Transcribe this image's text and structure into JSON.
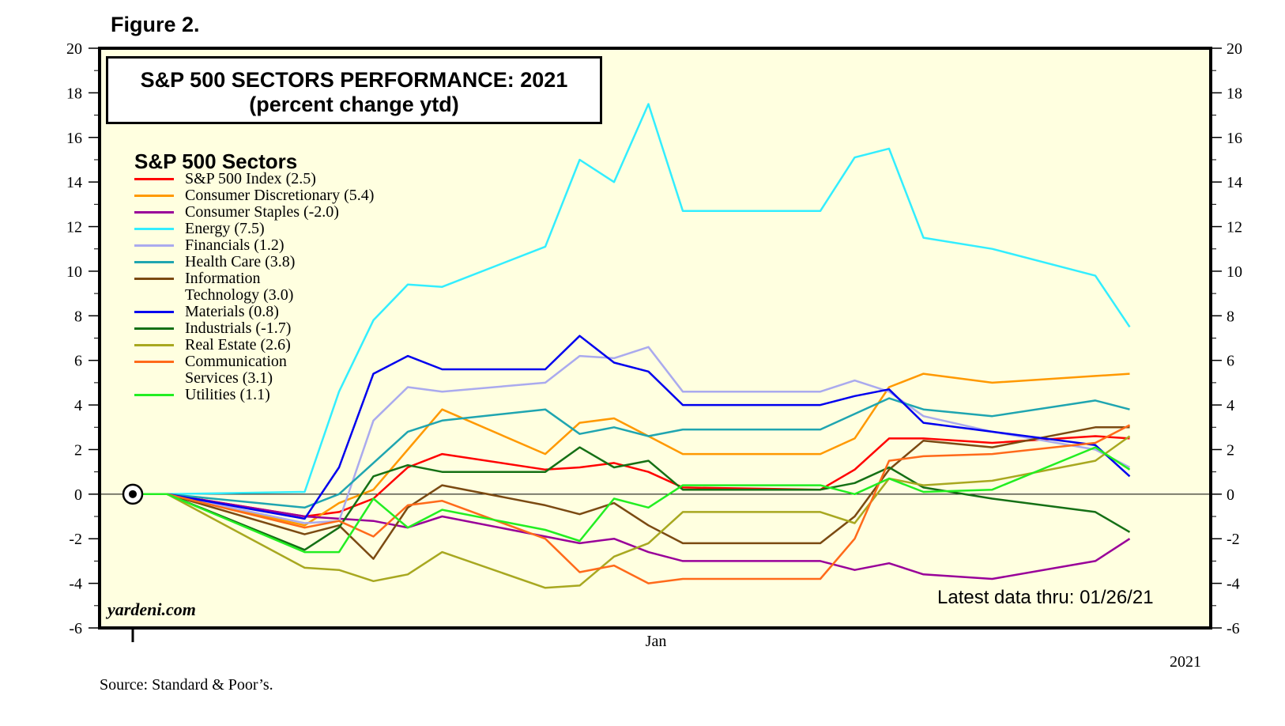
{
  "figure_label": "Figure 2.",
  "source": "Source: Standard & Poor’s.",
  "brand": "yardeni.com",
  "latest": "Latest data thru: 01/26/21",
  "title_box": {
    "line1": "S&P 500 SECTORS PERFORMANCE: 2021",
    "line2": "(percent change ytd)"
  },
  "legend": {
    "title": "S&P 500 Sectors"
  },
  "colors": {
    "plot_bg": "#ffffe0",
    "axis": "#000000"
  },
  "chart_data": {
    "type": "line",
    "title": "S&P 500 SECTORS PERFORMANCE: 2021",
    "subtitle": "(percent change ytd)",
    "xlabel": "",
    "ylabel": "",
    "ylim": [
      -6,
      20
    ],
    "yticks": [
      -6,
      -4,
      -2,
      0,
      2,
      4,
      6,
      8,
      10,
      12,
      14,
      16,
      18,
      20
    ],
    "ytick_labels": [
      "-6",
      "-4",
      "-2",
      "0",
      "2",
      "4",
      "6",
      "8",
      "10",
      "12",
      "14",
      "16",
      "18",
      "20"
    ],
    "x_label_jan": "Jan",
    "x_label_year": "2021",
    "start_marker": {
      "day": 0,
      "value": 0
    },
    "x_days": [
      0,
      1,
      5,
      6,
      7,
      8,
      9,
      12,
      13,
      14,
      15,
      16,
      20,
      21,
      22,
      23,
      25
    ],
    "series": [
      {
        "name": "S&P 500 Index (2.5)",
        "color": "#ff0000",
        "values": [
          0,
          0,
          -1.0,
          -0.8,
          -0.2,
          1.2,
          1.8,
          1.1,
          1.2,
          1.4,
          1.0,
          0.3,
          0.2,
          1.1,
          2.5,
          2.5,
          2.3
        ]
      },
      {
        "name": "Consumer Discretionary (5.4)",
        "color": "#ff9900",
        "values": [
          0,
          0,
          -1.4,
          -0.4,
          0.2,
          2.0,
          3.8,
          1.8,
          3.2,
          3.4,
          2.6,
          1.8,
          1.8,
          2.5,
          4.8,
          5.4,
          5.0
        ]
      },
      {
        "name": "Consumer Staples (-2.0)",
        "color": "#990099",
        "values": [
          0,
          0,
          -1.0,
          -1.1,
          -1.2,
          -1.5,
          -1.0,
          -1.9,
          -2.2,
          -2.0,
          -2.6,
          -3.0,
          -3.0,
          -3.4,
          -3.1,
          -3.6,
          -3.8
        ]
      },
      {
        "name": "Energy (7.5)",
        "color": "#33eeff",
        "values": [
          0,
          0,
          0.1,
          4.6,
          7.8,
          9.4,
          9.3,
          11.1,
          15.0,
          14.0,
          17.5,
          12.7,
          12.7,
          15.1,
          15.5,
          11.5,
          11.0
        ]
      },
      {
        "name": "Financials (1.2)",
        "color": "#aaaaee",
        "values": [
          0,
          0,
          -1.3,
          -1.2,
          3.3,
          4.8,
          4.6,
          5.0,
          6.2,
          6.1,
          6.6,
          4.6,
          4.6,
          5.1,
          4.6,
          3.5,
          2.8
        ]
      },
      {
        "name": "Health Care (3.8)",
        "color": "#1fa5b0",
        "values": [
          0,
          0,
          -0.6,
          0.0,
          1.4,
          2.8,
          3.3,
          3.8,
          2.7,
          3.0,
          2.6,
          2.9,
          2.9,
          3.6,
          4.3,
          3.8,
          3.5
        ]
      },
      {
        "name": "Information Technology (3.0)",
        "color": "#7b4a12",
        "values": [
          0,
          0,
          -1.8,
          -1.4,
          -2.9,
          -0.6,
          0.4,
          -0.5,
          -0.9,
          -0.4,
          -1.4,
          -2.2,
          -2.2,
          -1.0,
          1.1,
          2.4,
          2.1
        ]
      },
      {
        "name": "Materials (0.8)",
        "color": "#0000ee",
        "values": [
          0,
          0,
          -1.1,
          1.2,
          5.4,
          6.2,
          5.6,
          5.6,
          7.1,
          5.9,
          5.5,
          4.0,
          4.0,
          4.4,
          4.7,
          3.2,
          2.8
        ]
      },
      {
        "name": "Industrials (-1.7)",
        "color": "#157015",
        "values": [
          0,
          0,
          -2.5,
          -1.5,
          0.8,
          1.3,
          1.0,
          1.0,
          2.1,
          1.2,
          1.5,
          0.2,
          0.2,
          0.5,
          1.2,
          0.3,
          -0.2
        ]
      },
      {
        "name": "Real Estate (2.6)",
        "color": "#a8a820",
        "values": [
          0,
          0,
          -3.3,
          -3.4,
          -3.9,
          -3.6,
          -2.6,
          -4.2,
          -4.1,
          -2.8,
          -2.2,
          -0.8,
          -0.8,
          -1.3,
          0.7,
          0.4,
          0.6
        ]
      },
      {
        "name": "Communication Services (3.1)",
        "color": "#ff6a1a",
        "values": [
          0,
          0,
          -1.5,
          -1.2,
          -1.9,
          -0.5,
          -0.3,
          -2.0,
          -3.5,
          -3.2,
          -4.0,
          -3.8,
          -3.8,
          -2.0,
          1.5,
          1.7,
          1.8
        ]
      },
      {
        "name": "Utilities (1.1)",
        "color": "#22ee22",
        "values": [
          0,
          0,
          -2.6,
          -2.6,
          -0.2,
          -1.5,
          -0.7,
          -1.6,
          -2.1,
          -0.2,
          -0.6,
          0.4,
          0.4,
          0.0,
          0.7,
          0.1,
          0.2
        ]
      }
    ],
    "tail_days": [
      28,
      29
    ],
    "tail_values": [
      [
        2.6,
        2.5
      ],
      [
        5.3,
        5.4
      ],
      [
        -3.0,
        -2.0
      ],
      [
        9.8,
        7.5
      ],
      [
        2.0,
        1.2
      ],
      [
        4.2,
        3.8
      ],
      [
        3.0,
        3.0
      ],
      [
        2.2,
        0.8
      ],
      [
        -0.8,
        -1.7
      ],
      [
        1.5,
        2.6
      ],
      [
        2.3,
        3.1
      ],
      [
        2.1,
        1.1
      ]
    ]
  }
}
